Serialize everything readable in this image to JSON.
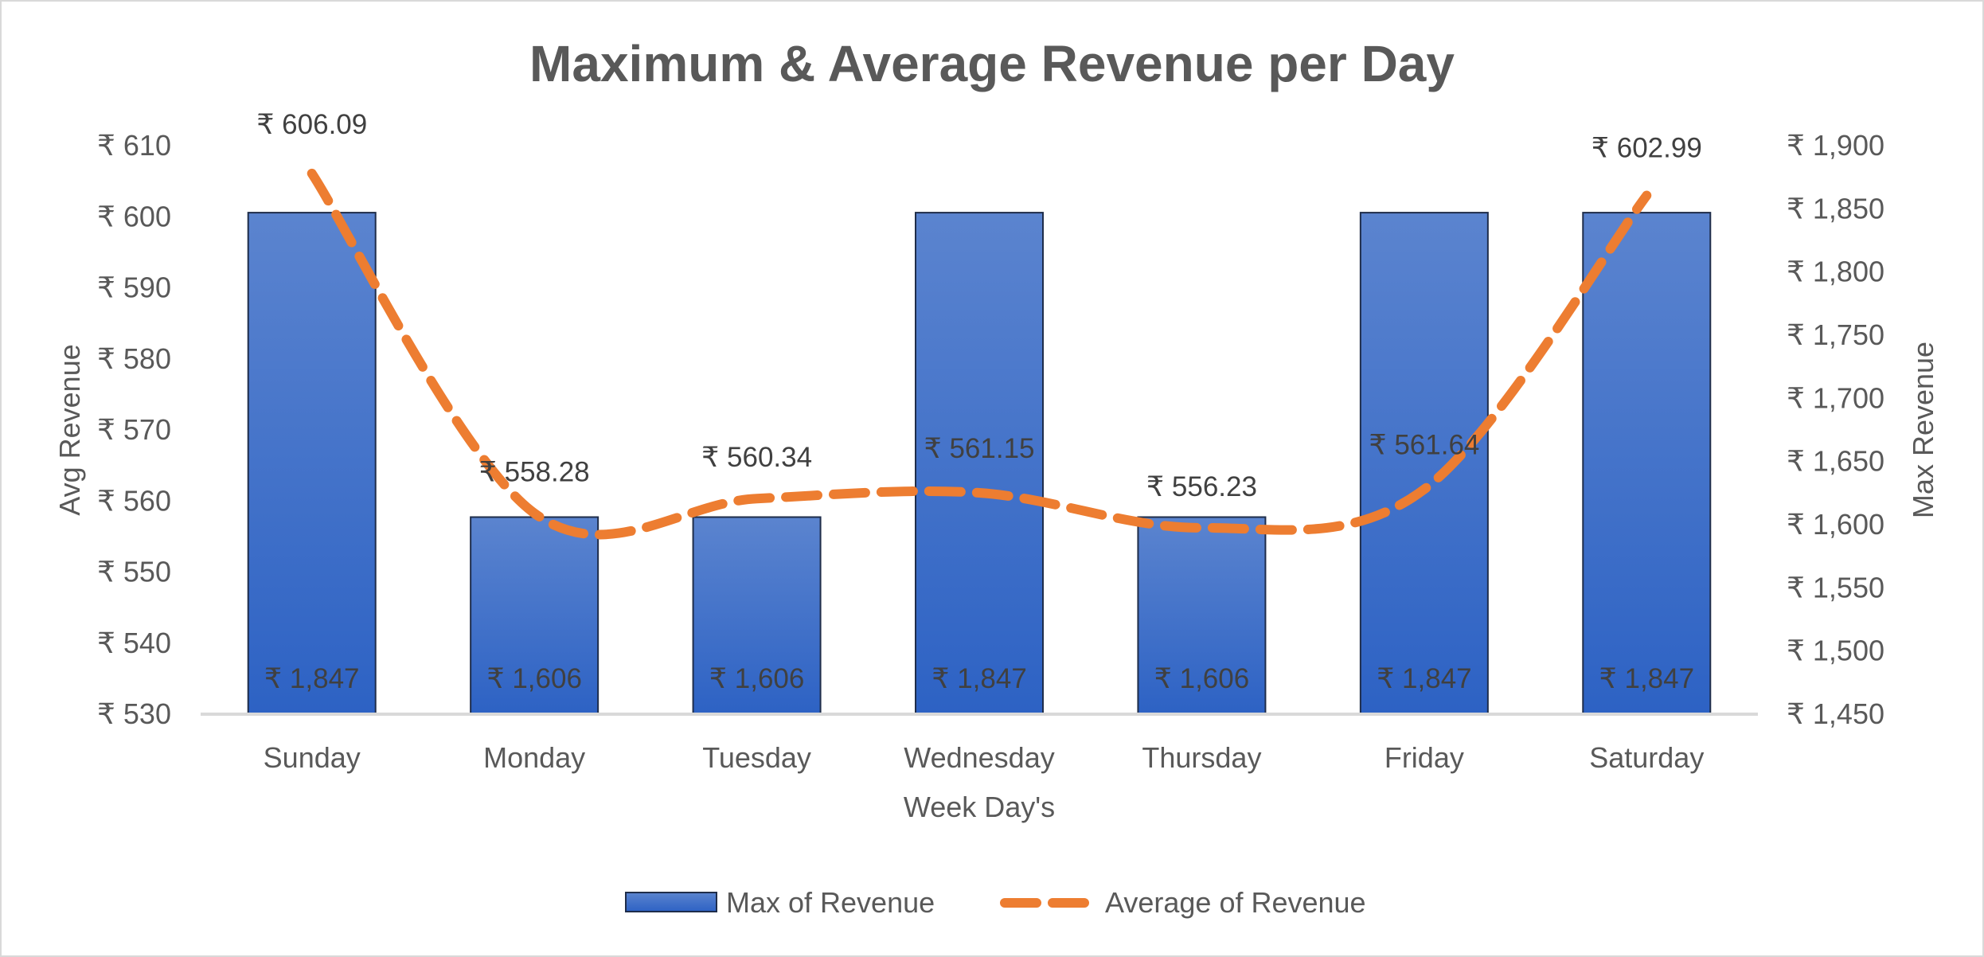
{
  "chart_data": {
    "type": "bar",
    "title": "Maximum & Average Revenue per Day",
    "categories": [
      "Sunday",
      "Monday",
      "Tuesday",
      "Wednesday",
      "Thursday",
      "Friday",
      "Saturday"
    ],
    "xlabel": "Week Day's",
    "series": [
      {
        "name": "Max of Revenue",
        "type": "bar",
        "axis": "right",
        "values": [
          1847,
          1606,
          1606,
          1847,
          1606,
          1847,
          1847
        ],
        "labels": [
          "₹ 1,847",
          "₹ 1,606",
          "₹ 1,606",
          "₹ 1,847",
          "₹ 1,606",
          "₹ 1,847",
          "₹ 1,847"
        ],
        "color": "#4472C4"
      },
      {
        "name": "Average of Revenue",
        "type": "line",
        "style": "dashed",
        "axis": "left",
        "values": [
          606.09,
          558.28,
          560.34,
          561.15,
          556.23,
          561.64,
          602.99
        ],
        "labels": [
          "₹ 606.09",
          "₹ 558.28",
          "₹ 560.34",
          "₹ 561.15",
          "₹ 556.23",
          "₹ 561.64",
          "₹ 602.99"
        ],
        "color": "#ED7D31"
      }
    ],
    "y_left": {
      "label": "Avg Revenue",
      "range": [
        530,
        610
      ],
      "ticks": [
        "₹ 530",
        "₹ 540",
        "₹ 550",
        "₹ 560",
        "₹ 570",
        "₹ 580",
        "₹ 590",
        "₹ 600",
        "₹ 610"
      ]
    },
    "y_right": {
      "label": "Max Revenue",
      "range": [
        1450,
        1900
      ],
      "ticks": [
        "₹ 1,450",
        "₹ 1,500",
        "₹ 1,550",
        "₹ 1,600",
        "₹ 1,650",
        "₹ 1,700",
        "₹ 1,750",
        "₹ 1,800",
        "₹ 1,850",
        "₹ 1,900"
      ]
    },
    "grid": false,
    "legend": "bottom"
  }
}
